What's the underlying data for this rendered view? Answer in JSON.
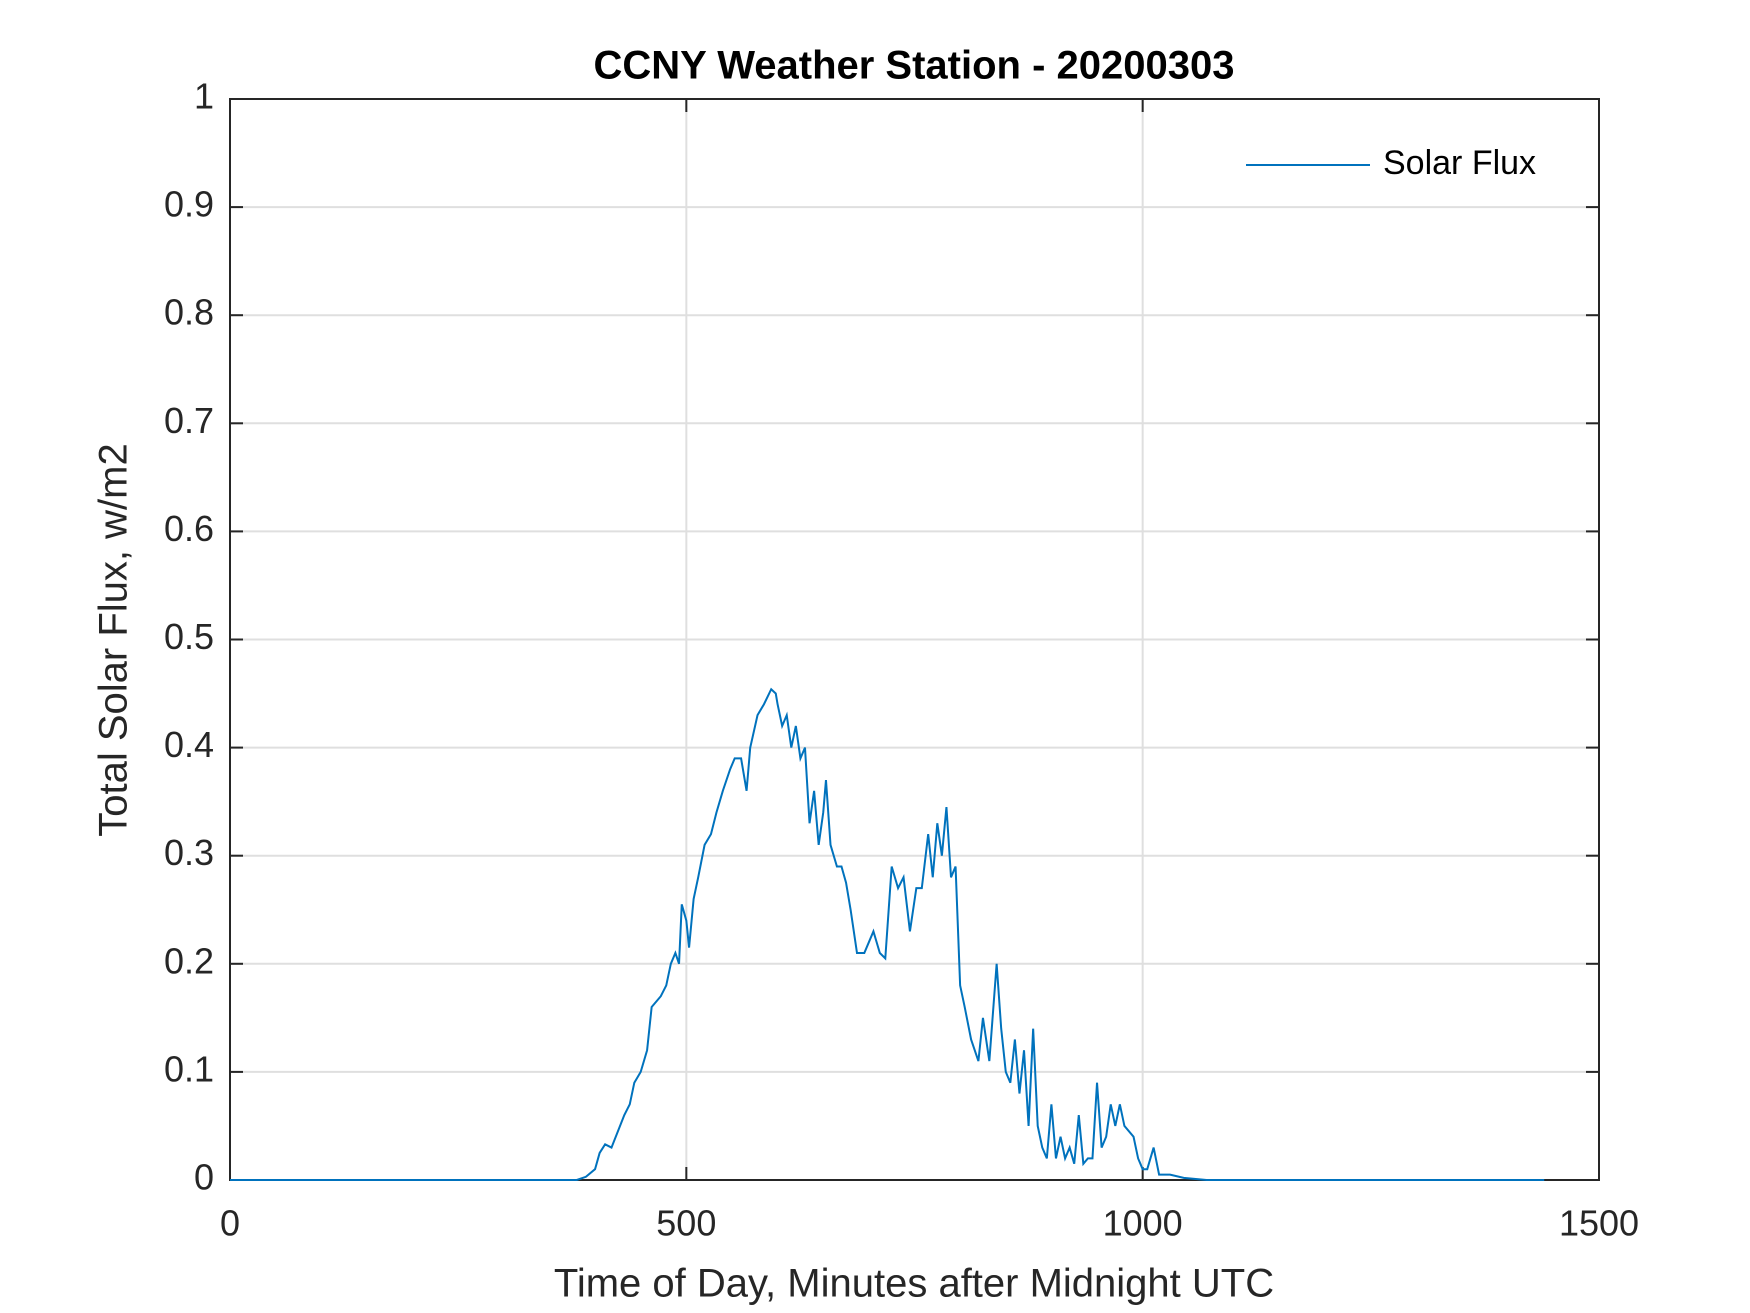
{
  "chart_data": {
    "type": "line",
    "title": "CCNY Weather Station - 20200303",
    "xlabel": "Time of Day, Minutes after Midnight UTC",
    "ylabel": "Total Solar Flux, w/m2",
    "xlim": [
      0,
      1500
    ],
    "xticks": [
      0,
      500,
      1000,
      1500
    ],
    "ylim": [
      0,
      1
    ],
    "yticks": [
      0,
      0.1,
      0.2,
      0.3,
      0.4,
      0.5,
      0.6,
      0.7,
      0.8,
      0.9,
      1
    ],
    "grid": true,
    "legend": "northeast",
    "series": [
      {
        "name": "Solar Flux",
        "color": "#0072bd",
        "x": [
          0,
          380,
          390,
          400,
          405,
          411,
          418,
          425,
          432,
          438,
          443,
          450,
          457,
          462,
          467,
          472,
          478,
          483,
          488,
          492,
          495,
          500,
          503,
          508,
          513,
          520,
          527,
          533,
          540,
          548,
          553,
          560,
          566,
          570,
          578,
          585,
          593,
          598,
          600,
          605,
          610,
          615,
          620,
          625,
          630,
          635,
          640,
          645,
          650,
          653,
          658,
          665,
          670,
          675,
          680,
          687,
          695,
          700,
          705,
          712,
          718,
          725,
          732,
          738,
          745,
          752,
          758,
          765,
          770,
          775,
          780,
          785,
          790,
          795,
          800,
          805,
          812,
          820,
          825,
          832,
          840,
          845,
          850,
          855,
          860,
          865,
          870,
          875,
          880,
          885,
          890,
          895,
          900,
          905,
          910,
          915,
          920,
          925,
          930,
          935,
          940,
          945,
          950,
          955,
          960,
          965,
          970,
          975,
          980,
          990,
          995,
          1000,
          1005,
          1012,
          1018,
          1030,
          1045,
          1070,
          1440
        ],
        "values": [
          0,
          0,
          0.003,
          0.01,
          0.025,
          0.033,
          0.03,
          0.045,
          0.06,
          0.07,
          0.09,
          0.1,
          0.12,
          0.16,
          0.165,
          0.17,
          0.18,
          0.2,
          0.21,
          0.2,
          0.255,
          0.24,
          0.215,
          0.26,
          0.28,
          0.31,
          0.32,
          0.34,
          0.36,
          0.38,
          0.39,
          0.39,
          0.36,
          0.4,
          0.43,
          0.44,
          0.454,
          0.45,
          0.44,
          0.42,
          0.43,
          0.4,
          0.42,
          0.39,
          0.4,
          0.33,
          0.36,
          0.31,
          0.34,
          0.37,
          0.31,
          0.29,
          0.29,
          0.275,
          0.25,
          0.21,
          0.21,
          0.22,
          0.23,
          0.21,
          0.205,
          0.29,
          0.27,
          0.28,
          0.23,
          0.27,
          0.27,
          0.32,
          0.28,
          0.33,
          0.3,
          0.345,
          0.28,
          0.29,
          0.18,
          0.16,
          0.13,
          0.11,
          0.15,
          0.11,
          0.2,
          0.14,
          0.1,
          0.09,
          0.13,
          0.08,
          0.12,
          0.05,
          0.14,
          0.05,
          0.03,
          0.02,
          0.07,
          0.02,
          0.04,
          0.02,
          0.03,
          0.015,
          0.06,
          0.015,
          0.02,
          0.02,
          0.09,
          0.03,
          0.04,
          0.07,
          0.05,
          0.07,
          0.05,
          0.04,
          0.02,
          0.01,
          0.01,
          0.03,
          0.005,
          0.005,
          0.002,
          0,
          0
        ]
      }
    ]
  }
}
